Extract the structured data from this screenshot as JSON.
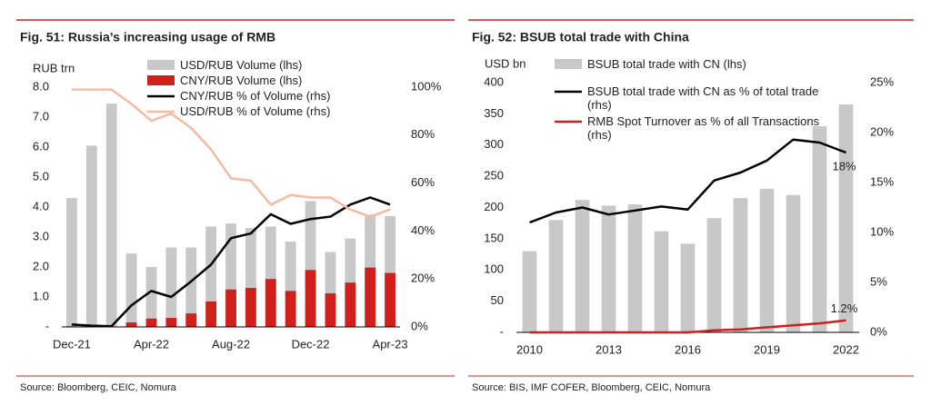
{
  "chart_data": [
    {
      "type": "bar",
      "title": "Fig. 51: Russia’s increasing usage of RMB",
      "ylabel": "RUB trn",
      "source": "Source: Bloomberg, CEIC, Nomura",
      "categories": [
        "Dec-21",
        null,
        null,
        null,
        "Apr-22",
        null,
        null,
        null,
        "Aug-22",
        null,
        null,
        null,
        "Dec-22",
        null,
        null,
        null,
        "Apr-23"
      ],
      "series": [
        {
          "name": "USD/RUB Volume (lhs)",
          "type": "bar",
          "color": "#c8c8c8",
          "axis": "y",
          "values": [
            4.3,
            6.05,
            7.45,
            2.45,
            2.0,
            2.65,
            2.65,
            3.35,
            3.45,
            3.3,
            3.35,
            2.85,
            4.2,
            2.5,
            2.95,
            3.75,
            3.7
          ]
        },
        {
          "name": "CNY/RUB Volume (lhs)",
          "type": "bar",
          "color": "#d0201c",
          "axis": "y",
          "values": [
            0.02,
            0.01,
            0.01,
            0.15,
            0.28,
            0.3,
            0.45,
            0.85,
            1.25,
            1.3,
            1.6,
            1.2,
            1.9,
            1.12,
            1.48,
            1.98,
            1.8
          ]
        },
        {
          "name": "CNY/RUB % of Volume (rhs)",
          "type": "line",
          "color": "#000000",
          "axis": "y2",
          "values": [
            1,
            0.5,
            0.3,
            9,
            15,
            12.5,
            19,
            26,
            37,
            39,
            47,
            43,
            45,
            46,
            51,
            54,
            51
          ]
        },
        {
          "name": "USD/RUB % of Volume (rhs)",
          "type": "line",
          "color": "#f7b9a3",
          "axis": "y2",
          "values": [
            99,
            99,
            99,
            93,
            86,
            89,
            83,
            74,
            62,
            61,
            51,
            55,
            54,
            54,
            49,
            46,
            49
          ]
        }
      ],
      "ylim": [
        0,
        8
      ],
      "yticks": [
        {
          "value": 0,
          "label": "-"
        },
        {
          "value": 1,
          "label": "1.0"
        },
        {
          "value": 2,
          "label": "2.0"
        },
        {
          "value": 3,
          "label": "3.0"
        },
        {
          "value": 4,
          "label": "4.0"
        },
        {
          "value": 5,
          "label": "5.0"
        },
        {
          "value": 6,
          "label": "6.0"
        },
        {
          "value": 7,
          "label": "7.0"
        },
        {
          "value": 8,
          "label": "8.0"
        }
      ],
      "y2lim": [
        0,
        100
      ],
      "y2ticks": [
        {
          "value": 0,
          "label": "0%"
        },
        {
          "value": 20,
          "label": "20%"
        },
        {
          "value": 40,
          "label": "40%"
        },
        {
          "value": 60,
          "label": "60%"
        },
        {
          "value": 80,
          "label": "80%"
        },
        {
          "value": 100,
          "label": "100%"
        }
      ],
      "grid": false
    },
    {
      "type": "bar",
      "title": "Fig. 52: BSUB total trade with China",
      "ylabel": "USD bn",
      "source": "Source: BIS, IMF COFER, Bloomberg, CEIC, Nomura",
      "categories": [
        "2010",
        null,
        null,
        "2013",
        null,
        null,
        "2016",
        null,
        null,
        "2019",
        null,
        null,
        "2022"
      ],
      "series": [
        {
          "name": "BSUB total trade with CN (lhs)",
          "type": "bar",
          "color": "#c8c8c8",
          "axis": "y",
          "values": [
            130,
            180,
            212,
            203,
            205,
            162,
            142,
            183,
            215,
            230,
            220,
            330,
            365
          ]
        },
        {
          "name": "BSUB  total trade with CN as % of total trade (rhs)",
          "type": "line",
          "color": "#000000",
          "axis": "y2",
          "values": [
            11,
            12,
            12.5,
            11.8,
            12.2,
            12.6,
            12.3,
            15.2,
            16,
            17.2,
            19.3,
            19,
            18
          ],
          "value_labels": [
            null,
            null,
            null,
            null,
            null,
            null,
            null,
            null,
            null,
            null,
            null,
            null,
            "18%"
          ]
        },
        {
          "name": "RMB Spot Turnover as % of all Transactions (rhs)",
          "type": "line",
          "color": "#d0201c",
          "axis": "y2",
          "values": [
            0,
            0,
            0,
            0,
            0,
            0,
            0,
            0.2,
            0.3,
            0.5,
            0.7,
            0.9,
            1.2
          ],
          "value_labels": [
            null,
            null,
            null,
            null,
            null,
            null,
            null,
            null,
            null,
            null,
            null,
            null,
            "1.2%"
          ]
        }
      ],
      "ylim": [
        0,
        400
      ],
      "yticks": [
        {
          "value": 0,
          "label": "-"
        },
        50,
        100,
        150,
        200,
        250,
        300,
        350,
        400
      ],
      "y2lim": [
        0,
        25
      ],
      "y2ticks": [
        {
          "value": 0,
          "label": "0%"
        },
        {
          "value": 5,
          "label": "5%"
        },
        {
          "value": 10,
          "label": "10%"
        },
        {
          "value": 15,
          "label": "15%"
        },
        {
          "value": 20,
          "label": "20%"
        },
        {
          "value": 25,
          "label": "25%"
        }
      ],
      "grid": false
    }
  ]
}
